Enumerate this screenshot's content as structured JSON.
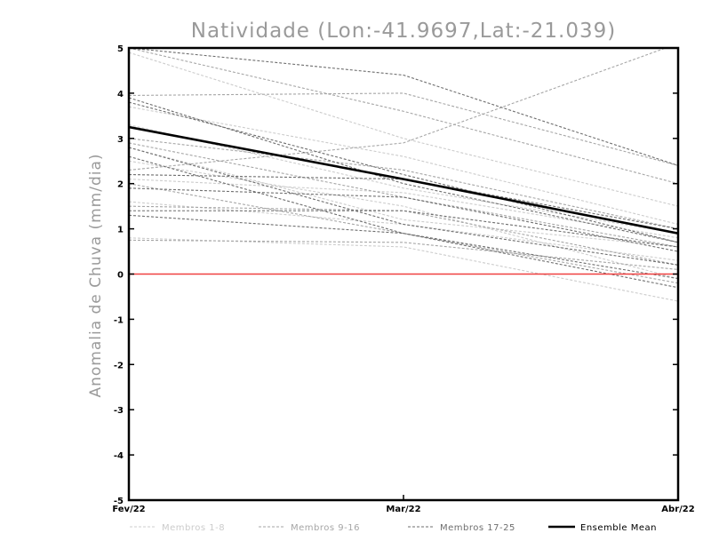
{
  "chart_data": {
    "type": "line",
    "title": "Natividade (Lon:-41.9697,Lat:-21.039)",
    "xlabel": "",
    "ylabel": "Anomalia de Chuva (mm/dia)",
    "categories": [
      "Fev/22",
      "Mar/22",
      "Abr/22"
    ],
    "ylim": [
      -5,
      5
    ],
    "yticks": [
      "5",
      "4",
      "3",
      "2",
      "1",
      "0",
      "-1",
      "-2",
      "-3",
      "-4",
      "-5"
    ],
    "zero_line_color": "#ef4040",
    "legend": {
      "placement": "bottom",
      "entries": [
        {
          "label": "Membros 1-8",
          "color": "#cccccc"
        },
        {
          "label": "Membros 9-16",
          "color": "#a6a6a6"
        },
        {
          "label": "Membros 17-25",
          "color": "#6e6e6e"
        },
        {
          "label": "Ensemble Mean",
          "color": "#000000"
        }
      ]
    },
    "groups": [
      {
        "color": "#cccccc",
        "members": [
          [
            4.9,
            3.0,
            1.5
          ],
          [
            3.7,
            2.6,
            1.1
          ],
          [
            2.8,
            1.2,
            0.6
          ],
          [
            2.1,
            1.8,
            0.8
          ],
          [
            1.6,
            1.1,
            0.3
          ],
          [
            0.8,
            0.6,
            -0.6
          ],
          [
            3.3,
            1.9,
            0.9
          ],
          [
            2.5,
            1.5,
            -0.1
          ]
        ]
      },
      {
        "color": "#a6a6a6",
        "members": [
          [
            3.95,
            4.0,
            2.4
          ],
          [
            2.3,
            2.9,
            5.1
          ],
          [
            5.0,
            3.6,
            2.0
          ],
          [
            2.9,
            1.7,
            0.6
          ],
          [
            1.5,
            1.4,
            0.2
          ],
          [
            3.0,
            2.3,
            1.0
          ],
          [
            2.0,
            0.9,
            -0.2
          ],
          [
            0.75,
            0.7,
            0.1
          ]
        ]
      },
      {
        "color": "#6e6e6e",
        "members": [
          [
            5.0,
            4.4,
            2.4
          ],
          [
            3.8,
            2.2,
            0.7
          ],
          [
            2.6,
            0.9,
            -0.3
          ],
          [
            1.4,
            1.4,
            0.6
          ],
          [
            2.2,
            2.1,
            1.0
          ],
          [
            1.9,
            1.7,
            0.5
          ],
          [
            2.8,
            1.1,
            0.2
          ],
          [
            3.9,
            2.0,
            0.7
          ],
          [
            1.3,
            0.9,
            -0.1
          ]
        ]
      }
    ],
    "ensemble_mean": [
      3.25,
      2.1,
      0.9
    ]
  }
}
